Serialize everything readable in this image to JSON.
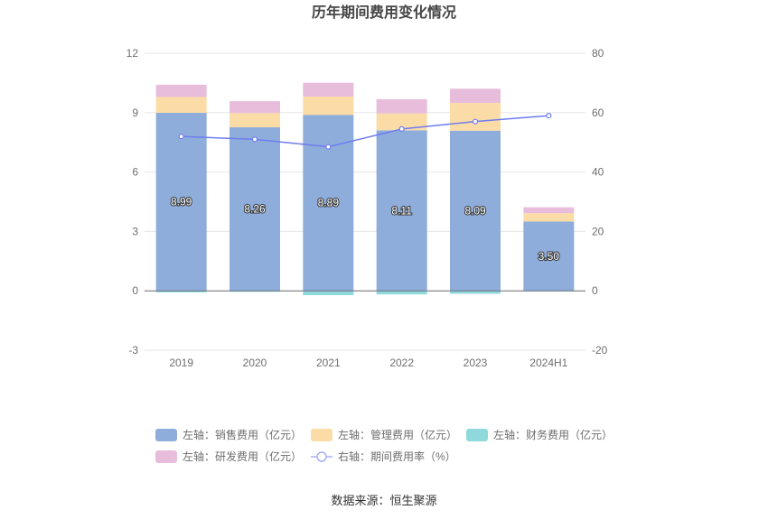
{
  "chart_data": {
    "type": "bar",
    "title": "历年期间费用变化情况",
    "categories": [
      "2019",
      "2020",
      "2021",
      "2022",
      "2023",
      "2024H1"
    ],
    "left_axis": {
      "ylim": [
        -3,
        12
      ],
      "ticks": [
        -3,
        0,
        3,
        6,
        9,
        12
      ]
    },
    "right_axis": {
      "ylim": [
        -20,
        80
      ],
      "ticks": [
        -20,
        0,
        20,
        40,
        60,
        80
      ]
    },
    "series": [
      {
        "name": "左轴：销售费用（亿元）",
        "type": "bar",
        "axis": "left",
        "color": "#8eaddb",
        "values": [
          8.99,
          8.26,
          8.89,
          8.11,
          8.09,
          3.5
        ],
        "labels": [
          "8.99",
          "8.26",
          "8.89",
          "8.11",
          "8.09",
          "3.50"
        ]
      },
      {
        "name": "左轴：管理费用（亿元）",
        "type": "bar",
        "axis": "left",
        "color": "#fcdca6",
        "values": [
          0.8,
          0.72,
          0.92,
          0.85,
          1.4,
          0.42
        ]
      },
      {
        "name": "左轴：财务费用（亿元）",
        "type": "bar",
        "axis": "left",
        "color": "#8fd8dc",
        "values": [
          -0.08,
          -0.05,
          -0.22,
          -0.18,
          -0.15,
          -0.03
        ]
      },
      {
        "name": "左轴：研发费用（亿元）",
        "type": "bar",
        "axis": "left",
        "color": "#e8bddb",
        "values": [
          0.62,
          0.6,
          0.7,
          0.72,
          0.72,
          0.3
        ]
      },
      {
        "name": "右轴：期间费用率（%）",
        "type": "line",
        "axis": "right",
        "color": "#6f7cf0",
        "values": [
          52.0,
          51.0,
          48.5,
          54.5,
          57.0,
          59.0
        ]
      }
    ],
    "source": "数据来源：恒生聚源"
  }
}
